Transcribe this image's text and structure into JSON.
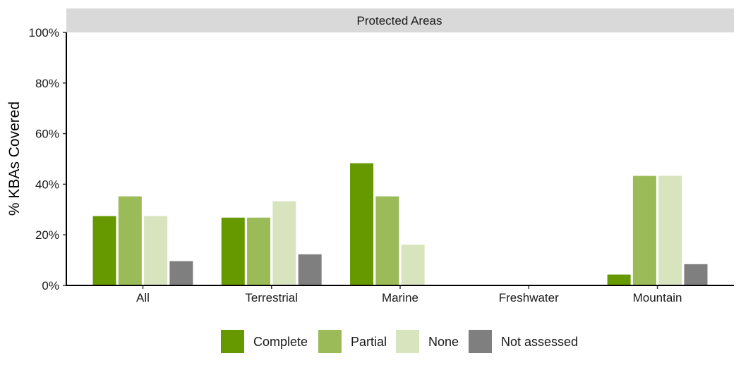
{
  "chart_data": {
    "type": "bar",
    "facet_title": "Protected Areas",
    "ylabel": "% KBAs Covered",
    "xlabel": "",
    "ylim": [
      0,
      100
    ],
    "y_ticks": [
      "0%",
      "20%",
      "40%",
      "60%",
      "80%",
      "100%"
    ],
    "y_tick_values": [
      0,
      20,
      40,
      60,
      80,
      100
    ],
    "categories": [
      "All",
      "Terrestrial",
      "Marine",
      "Freshwater",
      "Mountain"
    ],
    "series": [
      {
        "name": "Complete",
        "color": "#669900",
        "values": [
          27.4,
          26.8,
          48.3,
          null,
          4.3
        ]
      },
      {
        "name": "Partial",
        "color": "#9bbb59",
        "values": [
          35.2,
          26.8,
          35.2,
          null,
          43.3
        ]
      },
      {
        "name": "None",
        "color": "#d7e4bd",
        "values": [
          27.4,
          33.3,
          16.1,
          null,
          43.3
        ]
      },
      {
        "name": "Not assessed",
        "color": "#7f7f7f",
        "values": [
          9.6,
          12.3,
          null,
          null,
          8.4
        ]
      }
    ],
    "legend_position": "bottom",
    "grid": false
  }
}
